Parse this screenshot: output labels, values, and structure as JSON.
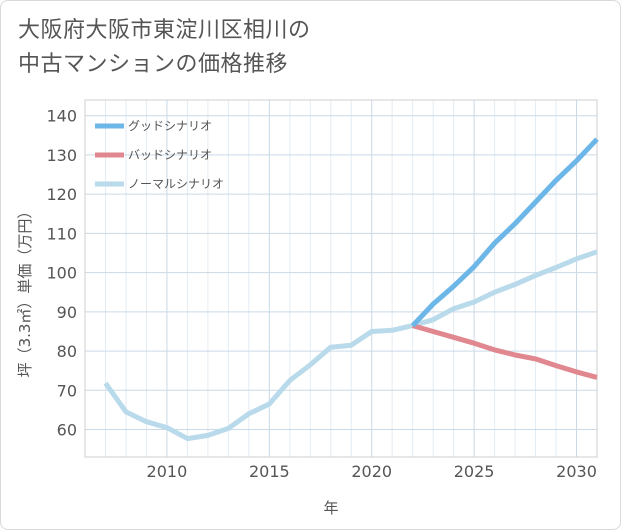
{
  "title_lines": [
    "大阪府大阪市東淀川区相川の",
    "中古マンションの価格推移"
  ],
  "chart_data": {
    "type": "line",
    "xlabel": "年",
    "ylabel": "坪（3.3㎡）単価（万円）",
    "xlim": [
      2006,
      2031
    ],
    "ylim": [
      53,
      144
    ],
    "x_ticks": [
      2010,
      2015,
      2020,
      2025,
      2030
    ],
    "y_ticks": [
      60,
      70,
      80,
      90,
      100,
      110,
      120,
      130,
      140
    ],
    "grid": true,
    "legend_position": "top-left",
    "series": [
      {
        "name": "グッドシナリオ",
        "color": "#6cb6e8",
        "x": [
          2022,
          2023,
          2024,
          2025,
          2026,
          2027,
          2028,
          2029,
          2030,
          2031
        ],
        "y": [
          86.5,
          92,
          96.5,
          101.5,
          107.5,
          112.5,
          118,
          123.5,
          128.5,
          134
        ]
      },
      {
        "name": "バッドシナリオ",
        "color": "#e0878f",
        "x": [
          2022,
          2023,
          2024,
          2025,
          2026,
          2027,
          2028,
          2029,
          2030,
          2031
        ],
        "y": [
          86.5,
          85,
          83.5,
          82,
          80.3,
          79,
          78,
          76.3,
          74.7,
          73.3
        ]
      },
      {
        "name": "ノーマルシナリオ",
        "color": "#b8daea",
        "x": [
          2007,
          2008,
          2009,
          2010,
          2011,
          2012,
          2013,
          2014,
          2015,
          2016,
          2017,
          2018,
          2019,
          2020,
          2021,
          2022,
          2023,
          2024,
          2025,
          2026,
          2027,
          2028,
          2029,
          2030,
          2031
        ],
        "y": [
          71.8,
          64.5,
          62,
          60.5,
          57.7,
          58.5,
          60.3,
          64,
          66.5,
          72.5,
          76.5,
          81,
          81.5,
          85,
          85.3,
          86.5,
          88,
          90.8,
          92.5,
          95,
          97,
          99.3,
          101.3,
          103.5,
          105.3
        ]
      }
    ]
  }
}
